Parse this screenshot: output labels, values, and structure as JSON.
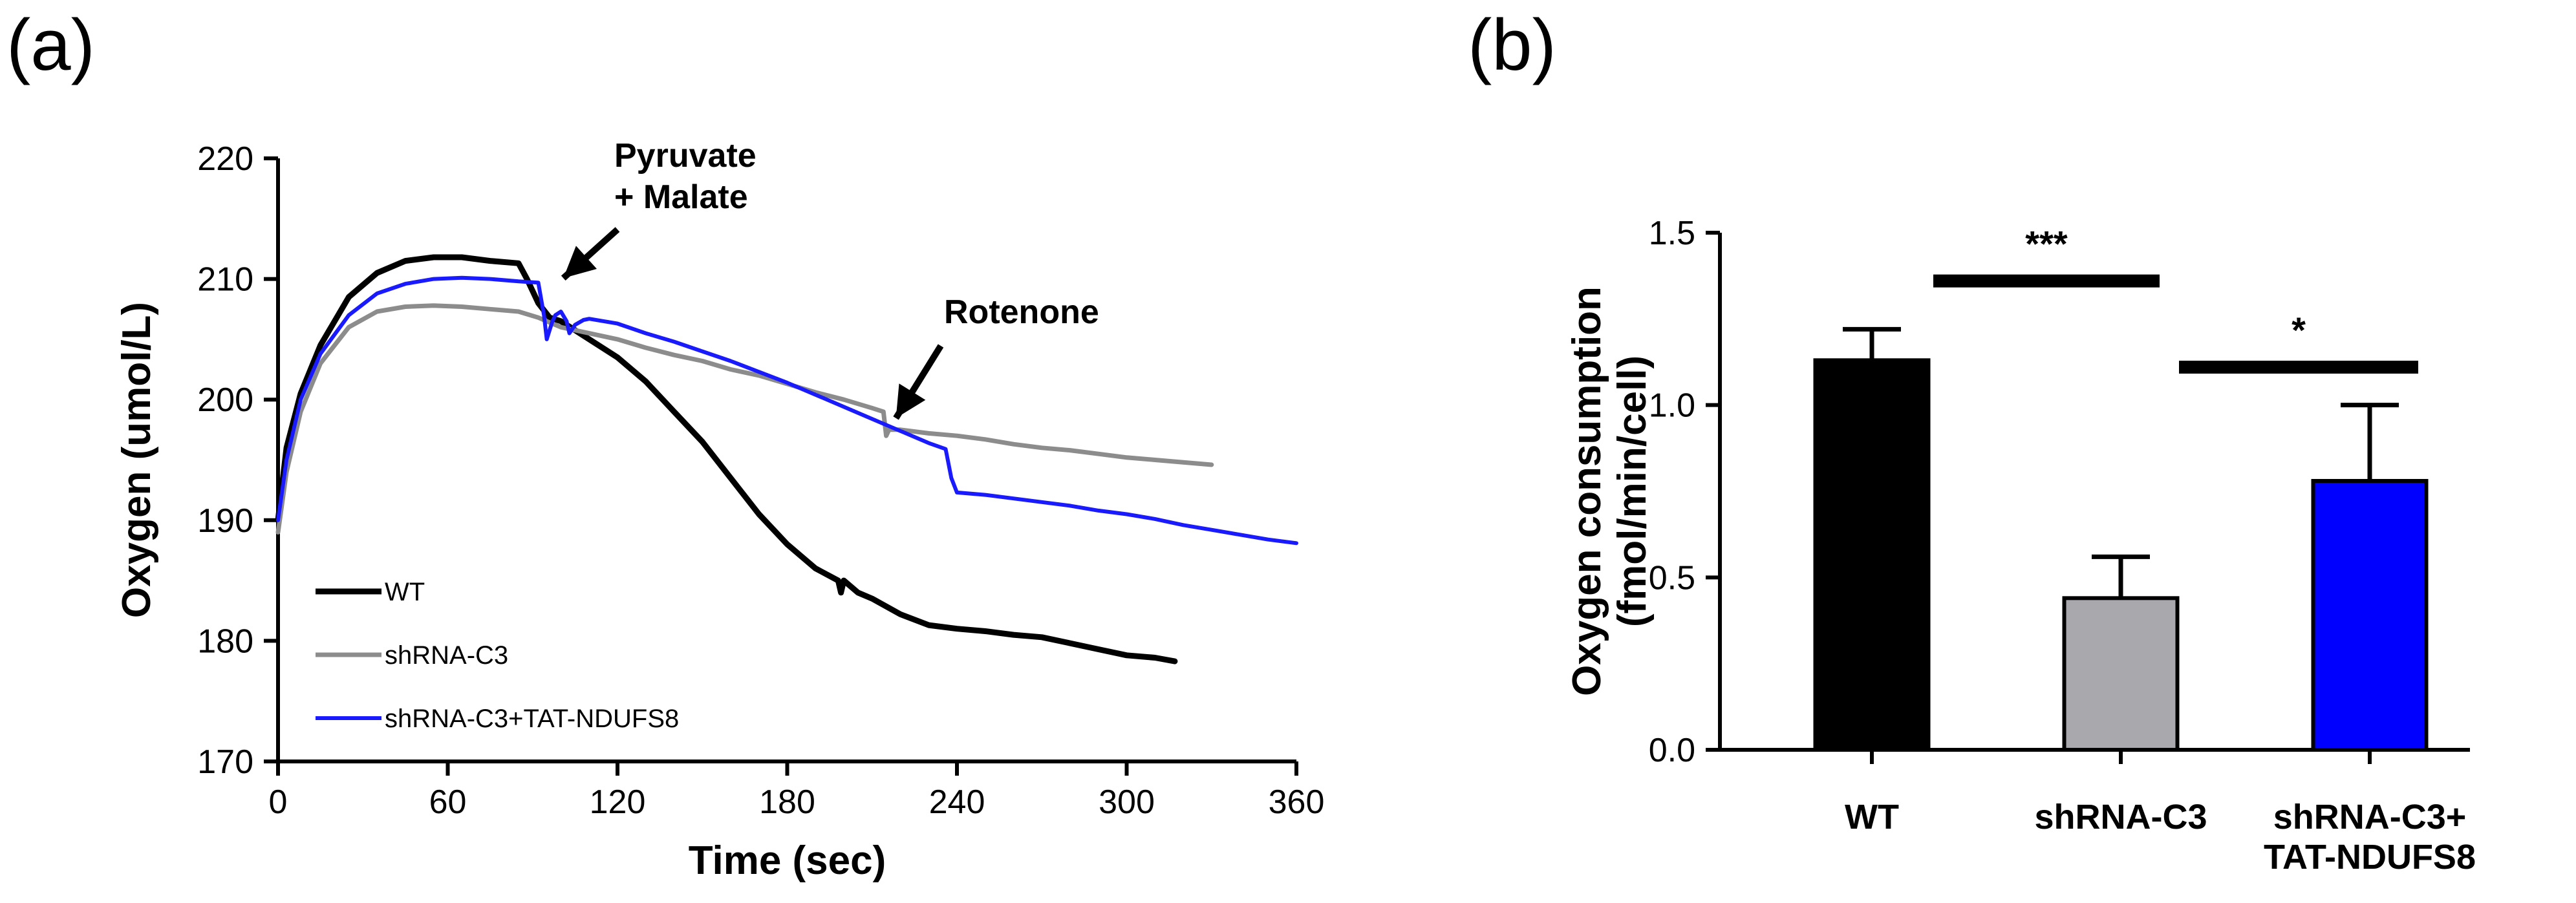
{
  "panel_labels": [
    "(a)",
    "(b)"
  ],
  "colors": {
    "wt": "#000000",
    "shrna": "#8c8c8c",
    "tat": "#1a1aff",
    "bar_shrna": "#a8a8ad",
    "bar_tat": "#0000ff"
  },
  "chart_data": [
    {
      "type": "line",
      "panel": "(a)",
      "title": "",
      "xlabel": "Time (sec)",
      "ylabel": "Oxygen (umol/L)",
      "xlim": [
        0,
        360
      ],
      "ylim": [
        170,
        220
      ],
      "xticks": [
        0,
        60,
        120,
        180,
        240,
        300,
        360
      ],
      "yticks": [
        170,
        180,
        190,
        200,
        210,
        220
      ],
      "legend": {
        "placement": "bottom-left",
        "entries": [
          "WT",
          "shRNA-C3",
          "shRNA-C3+TAT-NDUFS8"
        ]
      },
      "annotations": [
        {
          "text_lines": [
            "Pyruvate",
            "+ Malate"
          ],
          "x": 102,
          "y": 209
        },
        {
          "text_lines": [
            "Rotenone"
          ],
          "x": 215,
          "y": 199
        }
      ],
      "series": [
        {
          "name": "WT",
          "color": "#000000",
          "x": [
            0,
            3,
            8,
            15,
            25,
            35,
            45,
            55,
            65,
            75,
            85,
            88,
            92,
            96,
            100,
            110,
            120,
            130,
            140,
            150,
            160,
            170,
            180,
            190,
            198,
            199,
            200,
            205,
            210,
            220,
            230,
            240,
            250,
            260,
            270,
            280,
            290,
            300,
            310,
            317
          ],
          "y": [
            190,
            196,
            200.5,
            204.5,
            208.5,
            210.5,
            211.5,
            211.8,
            211.8,
            211.5,
            211.3,
            210,
            208,
            206.8,
            206.5,
            205,
            203.5,
            201.5,
            199,
            196.5,
            193.5,
            190.5,
            188,
            186,
            185,
            184,
            185,
            184,
            183.5,
            182.2,
            181.3,
            181,
            180.8,
            180.5,
            180.3,
            179.8,
            179.3,
            178.8,
            178.6,
            178.3
          ]
        },
        {
          "name": "shRNA-C3",
          "color": "#8c8c8c",
          "x": [
            0,
            3,
            8,
            15,
            25,
            35,
            45,
            55,
            65,
            75,
            85,
            92,
            96,
            100,
            110,
            120,
            130,
            140,
            150,
            160,
            170,
            180,
            190,
            200,
            210,
            214,
            215,
            216,
            220,
            230,
            240,
            250,
            260,
            270,
            280,
            290,
            300,
            310,
            320,
            330
          ],
          "y": [
            189,
            194,
            199,
            203,
            206,
            207.3,
            207.7,
            207.8,
            207.7,
            207.5,
            207.3,
            206.8,
            206.4,
            206,
            205.5,
            205,
            204.3,
            203.7,
            203.2,
            202.5,
            202,
            201.3,
            200.6,
            200,
            199.3,
            199,
            197,
            197.5,
            197.5,
            197.2,
            197,
            196.7,
            196.3,
            196,
            195.8,
            195.5,
            195.2,
            195,
            194.8,
            194.6
          ]
        },
        {
          "name": "shRNA-C3+TAT-NDUFS8",
          "color": "#1a1aff",
          "x": [
            0,
            3,
            8,
            15,
            25,
            35,
            45,
            55,
            65,
            75,
            85,
            92,
            94,
            95,
            97,
            98,
            100,
            102,
            103,
            105,
            108,
            110,
            120,
            130,
            140,
            150,
            160,
            170,
            180,
            190,
            200,
            210,
            220,
            230,
            236,
            238,
            240,
            250,
            260,
            270,
            280,
            290,
            300,
            310,
            320,
            330,
            340,
            350,
            360
          ],
          "y": [
            190,
            195,
            200,
            203.8,
            207,
            208.8,
            209.6,
            210,
            210.1,
            210,
            209.8,
            209.7,
            207,
            205,
            206.5,
            207,
            207.3,
            206.5,
            205.5,
            206.2,
            206.6,
            206.7,
            206.3,
            205.5,
            204.8,
            204,
            203.2,
            202.3,
            201.4,
            200.4,
            199.4,
            198.4,
            197.4,
            196.4,
            195.9,
            193.5,
            192.3,
            192.1,
            191.8,
            191.5,
            191.2,
            190.8,
            190.5,
            190.1,
            189.6,
            189.2,
            188.8,
            188.4,
            188.1
          ]
        }
      ]
    },
    {
      "type": "bar",
      "panel": "(b)",
      "title": "",
      "xlabel": "",
      "ylabel_lines": [
        "Oxygen consumption",
        "(fmol/min/cell)"
      ],
      "ylim": [
        0,
        1.5
      ],
      "yticks": [
        "0.0",
        "0.5",
        "1.0",
        "1.5"
      ],
      "categories": [
        [
          "WT"
        ],
        [
          "shRNA-C3"
        ],
        [
          "shRNA-C3+",
          "TAT-NDUFS8"
        ]
      ],
      "values": [
        1.13,
        0.44,
        0.78
      ],
      "errors": [
        0.09,
        0.12,
        0.22
      ],
      "bar_colors": [
        "#000000",
        "#a8a8ad",
        "#0000ff"
      ],
      "significance": [
        {
          "from": 0,
          "to": 1,
          "label": "***",
          "y": 1.36
        },
        {
          "from": 1,
          "to": 2,
          "label": "*",
          "y": 1.11
        }
      ]
    }
  ]
}
